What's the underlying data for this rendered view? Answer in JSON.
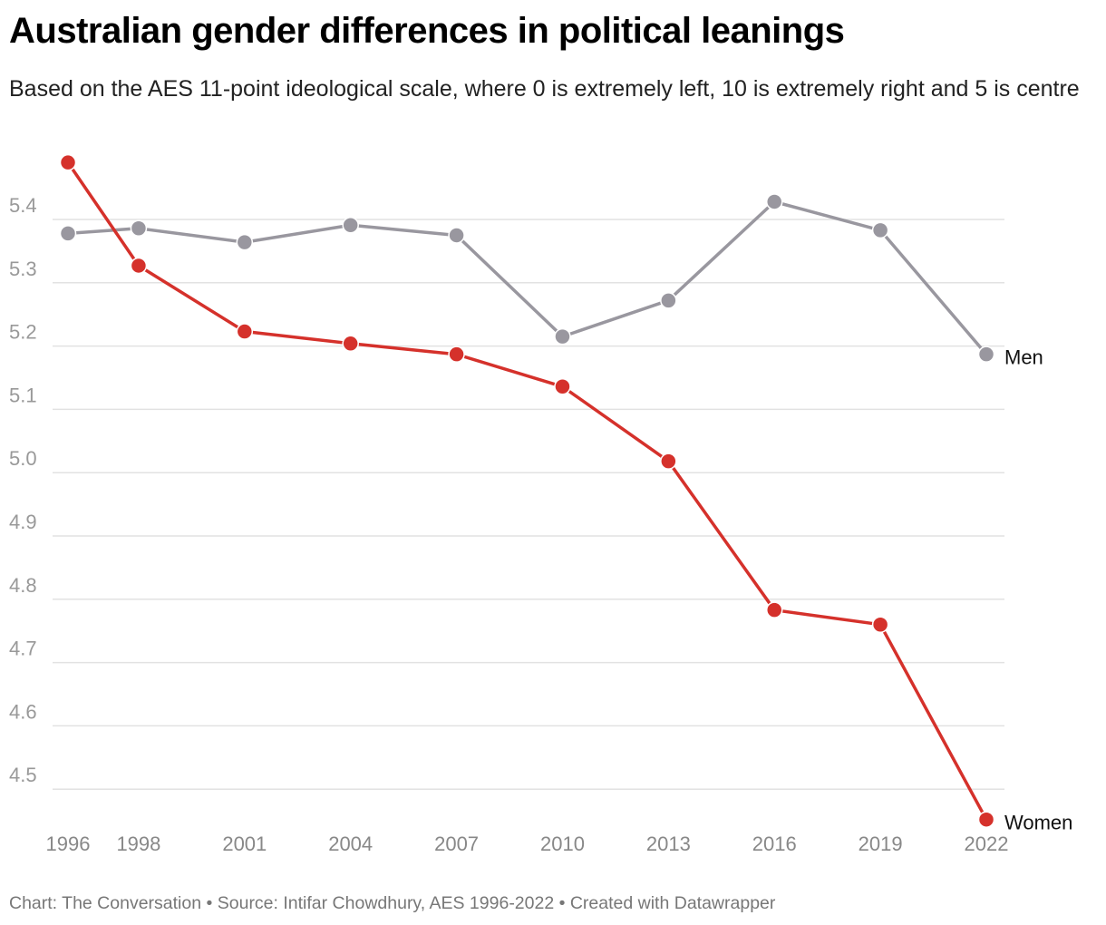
{
  "title": "Australian gender differences in political leanings",
  "subtitle": "Based on the AES 11-point ideological scale, where 0 is extremely left, 10 is extremely right and 5 is centre",
  "footer": "Chart: The Conversation • Source: Intifar Chowdhury, AES 1996-2022 • Created with Datawrapper",
  "chart_data": {
    "type": "line",
    "x": [
      1996,
      1998,
      2001,
      2004,
      2007,
      2010,
      2013,
      2016,
      2019,
      2022
    ],
    "x_tick_labels": [
      "1996",
      "1998",
      "2001",
      "2004",
      "2007",
      "2010",
      "2013",
      "2016",
      "2019",
      "2022"
    ],
    "y_ticks": [
      4.5,
      4.6,
      4.7,
      4.8,
      4.9,
      5.0,
      5.1,
      5.2,
      5.3,
      5.4
    ],
    "y_tick_labels": [
      "4.5",
      "4.6",
      "4.7",
      "4.8",
      "4.9",
      "5.0",
      "5.1",
      "5.2",
      "5.3",
      "5.4"
    ],
    "grid": true,
    "series": [
      {
        "name": "Men",
        "color": "#99979f",
        "values": [
          5.378,
          5.386,
          5.364,
          5.391,
          5.375,
          5.215,
          5.272,
          5.428,
          5.383,
          5.187
        ]
      },
      {
        "name": "Women",
        "color": "#d5312b",
        "values": [
          5.49,
          5.327,
          5.223,
          5.204,
          5.187,
          5.136,
          5.018,
          4.783,
          4.76,
          4.452
        ]
      }
    ]
  }
}
